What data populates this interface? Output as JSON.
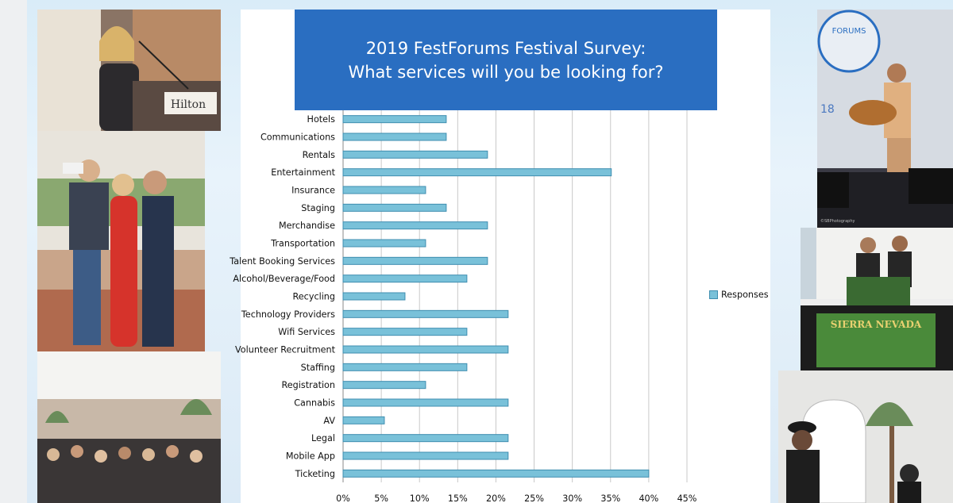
{
  "chart_data": {
    "type": "bar",
    "orientation": "horizontal",
    "title": "2019 FestForums Festival Survey:",
    "subtitle": "What services will you be looking for?",
    "categories": [
      "Hotels",
      "Communications",
      "Rentals",
      "Entertainment",
      "Insurance",
      "Staging",
      "Merchandise",
      "Transportation",
      "Talent Booking Services",
      "Alcohol/Beverage/Food",
      "Recycling",
      "Technology Providers",
      "Wifi Services",
      "Volunteer Recruitment",
      "Staffing",
      "Registration",
      "Cannabis",
      "AV",
      "Legal",
      "Mobile App",
      "Ticketing"
    ],
    "series": [
      {
        "name": "Responses",
        "values": [
          13.5,
          13.5,
          18.9,
          35.1,
          10.8,
          13.5,
          18.9,
          10.8,
          18.9,
          16.2,
          8.1,
          21.6,
          16.2,
          21.6,
          16.2,
          10.8,
          21.6,
          5.4,
          21.6,
          21.6,
          40.0
        ]
      }
    ],
    "xticks": [
      "0%",
      "5%",
      "10%",
      "15%",
      "20%",
      "25%",
      "30%",
      "35%",
      "40%",
      "45%"
    ],
    "xlim": [
      0,
      45
    ],
    "grid": true,
    "legend": "right",
    "bar_color": "#79c1d9",
    "bar_edge_color": "#3f8eb0"
  },
  "photos": {
    "speaker_sign": "Hilton",
    "banner_text": "FORUMS",
    "stage_year": "18",
    "photo_credit": "©SBPhotography",
    "booth_sign": "SIERRA NEVADA"
  },
  "colors": {
    "title_bg": "#2a6ec1",
    "page_bg": "#dbeaf6"
  }
}
